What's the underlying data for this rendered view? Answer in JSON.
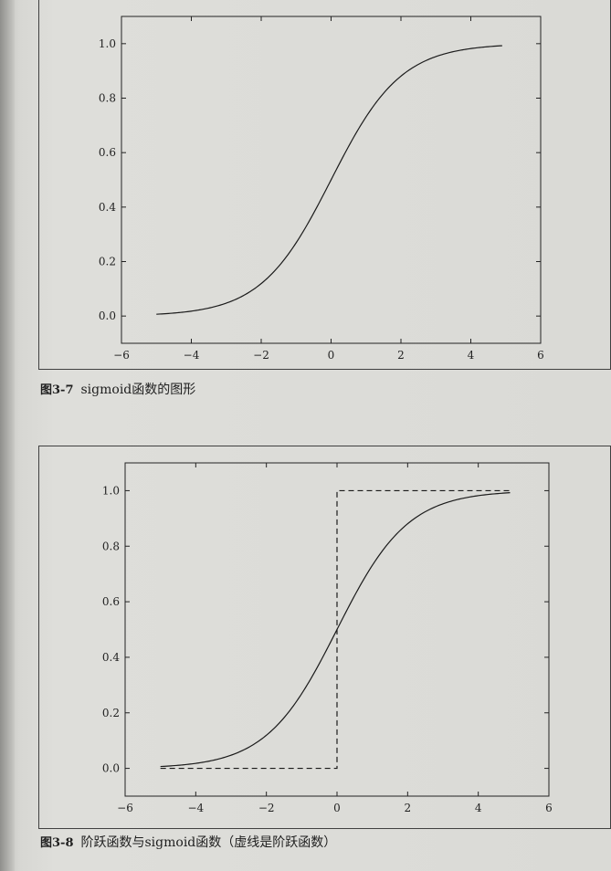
{
  "captions": [
    {
      "number": "图3-7",
      "text": "sigmoid函数的图形"
    },
    {
      "number": "图3-8",
      "text": "阶跃函数与sigmoid函数（虚线是阶跃函数）"
    }
  ],
  "chart_data": [
    {
      "type": "line",
      "xlim": [
        -6,
        6
      ],
      "ylim": [
        -0.1,
        1.1
      ],
      "xticks": [
        "−6",
        "−4",
        "−2",
        "0",
        "2",
        "4",
        "6"
      ],
      "yticks": [
        "0.0",
        "0.2",
        "0.4",
        "0.6",
        "0.8",
        "1.0"
      ],
      "grid": false,
      "series": [
        {
          "style": "solid",
          "function": "sigmoid",
          "x_range": [
            -5,
            4.9
          ]
        }
      ]
    },
    {
      "type": "line",
      "xlim": [
        -6,
        6
      ],
      "ylim": [
        -0.1,
        1.1
      ],
      "xticks": [
        "−6",
        "−4",
        "−2",
        "0",
        "2",
        "4",
        "6"
      ],
      "yticks": [
        "0.0",
        "0.2",
        "0.4",
        "0.6",
        "0.8",
        "1.0"
      ],
      "grid": false,
      "series": [
        {
          "style": "solid",
          "function": "sigmoid",
          "x_range": [
            -5,
            4.9
          ]
        },
        {
          "style": "dashed",
          "function": "step",
          "x_range": [
            -5,
            4.9
          ]
        }
      ]
    }
  ]
}
